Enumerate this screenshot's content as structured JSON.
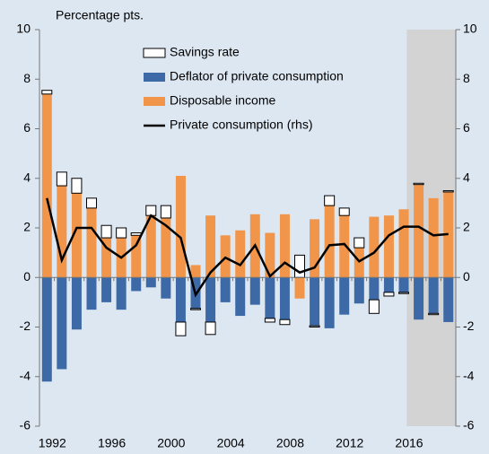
{
  "chart_data": {
    "type": "bar",
    "ylabel": "Percentage pts.",
    "categories": [
      "1992",
      null,
      null,
      null,
      "1996",
      null,
      null,
      null,
      "2000",
      null,
      null,
      null,
      "2004",
      null,
      null,
      null,
      "2008",
      null,
      null,
      null,
      "2012",
      null,
      null,
      null,
      "2016",
      null,
      null,
      null
    ],
    "series": [
      {
        "name": "Savings rate",
        "type": "bar",
        "color": "#ffffff",
        "values": [
          0.15,
          0.55,
          0.6,
          0.4,
          0.5,
          0.4,
          0.1,
          0.4,
          0.5,
          -0.55,
          -0.05,
          -0.5,
          0,
          0,
          0,
          -0.15,
          -0.2,
          0.9,
          -0.05,
          0.4,
          0.3,
          0.4,
          -0.55,
          -0.15,
          -0.05,
          0.05,
          -0.05,
          0.05
        ]
      },
      {
        "name": "Deflator of private consumption",
        "type": "bar",
        "color": "#3d6aa6",
        "values": [
          -4.2,
          -3.7,
          -2.1,
          -1.3,
          -1.0,
          -1.3,
          -0.55,
          -0.4,
          -0.85,
          -1.8,
          -1.25,
          -1.8,
          -1.0,
          -1.55,
          -1.1,
          -1.65,
          -1.7,
          0,
          -1.95,
          -2.05,
          -1.5,
          -1.05,
          -0.9,
          -0.6,
          -0.6,
          -1.7,
          -1.45,
          -1.8
        ]
      },
      {
        "name": "Disposable income",
        "type": "bar",
        "color": "#f0954a",
        "values": [
          7.4,
          3.7,
          3.4,
          2.8,
          1.6,
          1.6,
          1.7,
          2.5,
          2.4,
          4.1,
          0.5,
          2.5,
          1.7,
          1.9,
          2.55,
          1.8,
          2.55,
          -0.85,
          2.35,
          2.9,
          2.5,
          1.2,
          2.45,
          2.5,
          2.75,
          3.75,
          3.2,
          3.45
        ]
      },
      {
        "name": "Private consumption (rhs)",
        "type": "line",
        "axis": "y2",
        "color": "#000000",
        "values": [
          3.2,
          0.7,
          2.0,
          2.0,
          1.2,
          0.8,
          1.3,
          2.5,
          2.1,
          1.6,
          -0.7,
          0.2,
          0.8,
          0.5,
          1.3,
          0.05,
          0.6,
          0.2,
          0.4,
          1.3,
          1.35,
          0.65,
          1.0,
          1.7,
          2.05,
          2.05,
          1.7,
          1.75
        ]
      }
    ],
    "shade_from_index": 25,
    "ylim": [
      -6,
      10
    ],
    "yticks": [
      -6,
      -4,
      -2,
      0,
      2,
      4,
      6,
      8,
      10
    ],
    "y2lim": [
      -6,
      10
    ],
    "y2ticks": [
      -6,
      -4,
      -2,
      0,
      2,
      4,
      6,
      8,
      10
    ],
    "legend": "top"
  }
}
